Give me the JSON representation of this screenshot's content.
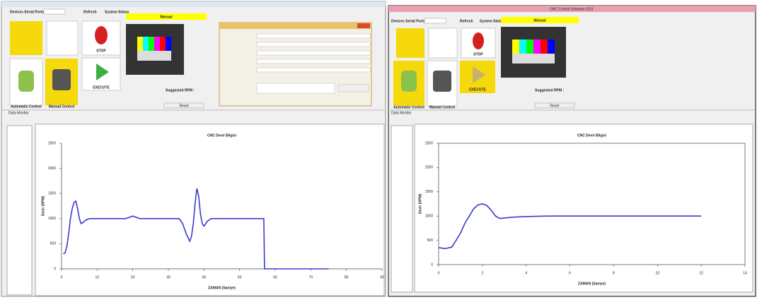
{
  "left_window": {
    "ports_label": "Devices Serial Ports",
    "refresh": "Refresh",
    "status": "System Status",
    "mode": "Manual",
    "stop": "STOP",
    "execute": "EXECUTE",
    "auto": "Automatic Control",
    "manual": "Manual Control",
    "suggested": "Suggested RPM :",
    "reset": "Reset",
    "monitor": "Data Monitor"
  },
  "right_window": {
    "title": "CNC Control Software 2011",
    "ports_label": "Devices Serial Ports",
    "refresh": "Refresh",
    "status": "System Status",
    "mode": "Manual",
    "stop": "STOP",
    "execute": "EXECUTE",
    "auto": "Automatic Control",
    "manual": "Manual Control",
    "suggested": "Suggested RPM :",
    "reset": "Reset",
    "monitor": "Data Monitor"
  },
  "chart_data": [
    {
      "type": "line",
      "title": "CNC Devir Bilgisi",
      "x_label": "ZAMAN (Saniye)",
      "y_label": "Devir (RPM)",
      "color": "#3a3ad0",
      "x": [
        0.5,
        1,
        1.5,
        2,
        2.5,
        3,
        3.5,
        4,
        4.5,
        5,
        5.5,
        6,
        7,
        8,
        10,
        14,
        18,
        20,
        22,
        26,
        30,
        33,
        34,
        35,
        36,
        36.5,
        37,
        37.5,
        38,
        38.5,
        39,
        39.5,
        40,
        41,
        42,
        44,
        48,
        52,
        56,
        56.8,
        57,
        60,
        65,
        70,
        75
      ],
      "values": [
        300,
        320,
        450,
        700,
        1000,
        1200,
        1320,
        1350,
        1200,
        1000,
        900,
        920,
        980,
        1000,
        1000,
        1000,
        1000,
        1050,
        1000,
        1000,
        1000,
        1000,
        900,
        700,
        550,
        650,
        900,
        1300,
        1600,
        1450,
        1100,
        900,
        850,
        950,
        1000,
        1000,
        1000,
        1000,
        1000,
        1000,
        0,
        0,
        0,
        0,
        0
      ],
      "xlim": [
        0,
        90
      ],
      "xticks": [
        0,
        10,
        20,
        30,
        40,
        50,
        60,
        70,
        80,
        90
      ],
      "ylim": [
        0,
        2500
      ],
      "yticks": [
        0,
        500,
        1000,
        1500,
        2000,
        2500
      ],
      "frame": false
    },
    {
      "type": "line",
      "title": "CNC Devir Bilgisi",
      "x_label": "ZAMAN (Saniye)",
      "y_label": "Devir (RPM)",
      "color": "#3a3ad0",
      "x": [
        0,
        0.3,
        0.6,
        0.8,
        1,
        1.2,
        1.4,
        1.6,
        1.8,
        2,
        2.2,
        2.4,
        2.6,
        2.8,
        3,
        3.5,
        4,
        5,
        6,
        7,
        8,
        9,
        10,
        11,
        12
      ],
      "values": [
        350,
        330,
        360,
        500,
        650,
        850,
        1000,
        1150,
        1230,
        1250,
        1220,
        1120,
        1000,
        950,
        960,
        980,
        990,
        1000,
        1000,
        1000,
        1000,
        1000,
        1000,
        1000,
        1000
      ],
      "xlim": [
        0,
        14
      ],
      "xticks": [
        0,
        2,
        4,
        6,
        8,
        10,
        12,
        14
      ],
      "ylim": [
        0,
        2500
      ],
      "yticks": [
        0,
        500,
        1000,
        1500,
        2000,
        2500
      ],
      "frame": true
    }
  ]
}
